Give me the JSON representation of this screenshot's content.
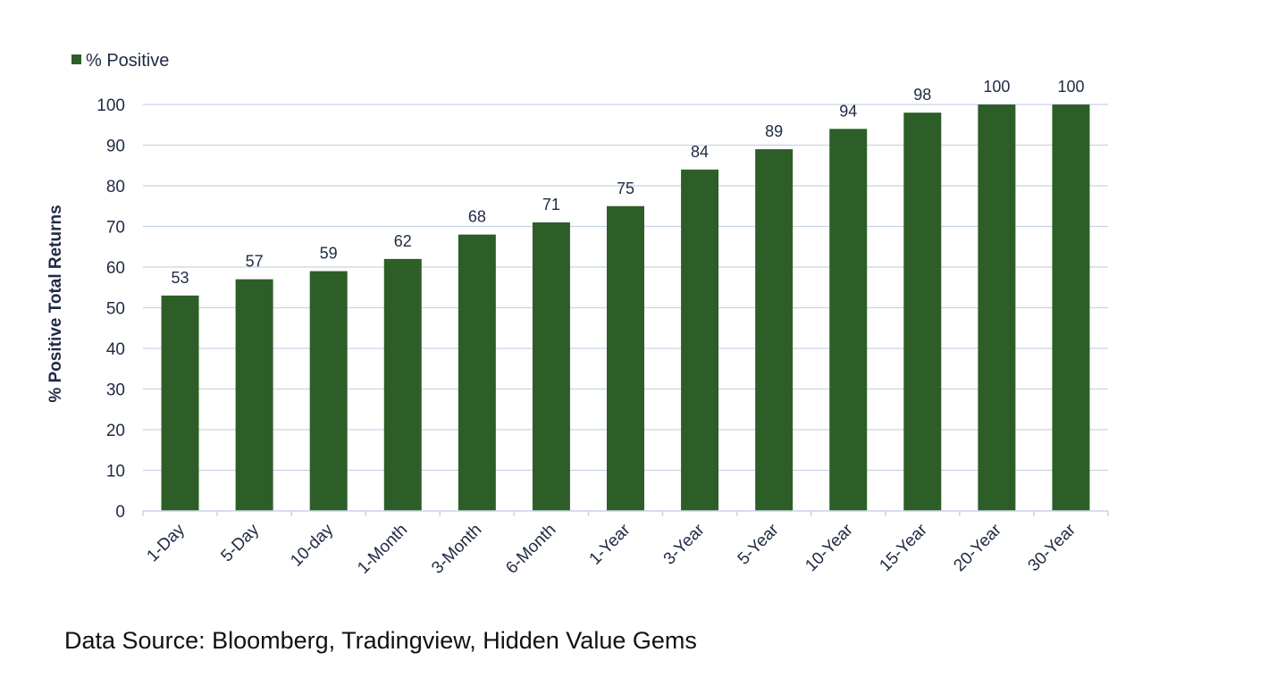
{
  "chart_data": {
    "type": "bar",
    "categories": [
      "1-Day",
      "5-Day",
      "10-day",
      "1-Month",
      "3-Month",
      "6-Month",
      "1-Year",
      "3-Year",
      "5-Year",
      "10-Year",
      "15-Year",
      "20-Year",
      "30-Year"
    ],
    "series": [
      {
        "name": "% Positive",
        "values": [
          53,
          57,
          59,
          62,
          68,
          71,
          75,
          84,
          89,
          94,
          98,
          100,
          100
        ],
        "color": "#2e5e28"
      }
    ],
    "ylabel": "% Positive Total Returns",
    "ylim": [
      0,
      100
    ],
    "yticks": [
      0,
      10,
      20,
      30,
      40,
      50,
      60,
      70,
      80,
      90,
      100
    ],
    "grid": true,
    "legend_position": "top-left",
    "data_labels": true
  },
  "source_text": "Data Source: Bloomberg, Tradingview, Hidden Value Gems"
}
